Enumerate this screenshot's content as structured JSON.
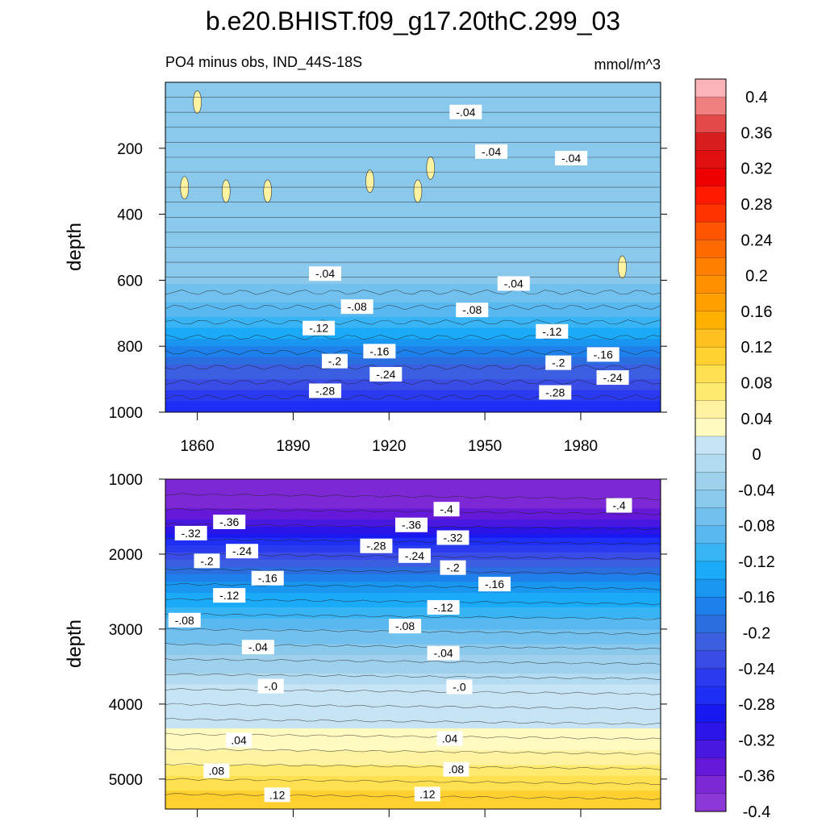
{
  "chart_data": {
    "title": "b.e20.BHIST.f09_g17.20thC.299_03",
    "subtitle_left": "PO4 minus obs, IND_44S-18S",
    "units": "mmol/m^3",
    "type": "heatmap",
    "time_range": [
      1850,
      2005
    ],
    "time_ticks": [
      "1860",
      "1890",
      "1920",
      "1950",
      "1980"
    ],
    "panels": [
      {
        "name": "upper",
        "ylabel": "depth",
        "ylim": [
          0,
          1000
        ],
        "y_ticks": [
          "200",
          "400",
          "600",
          "800",
          "1000"
        ],
        "depth_profile": [
          {
            "depth": 0,
            "value": -0.05
          },
          {
            "depth": 550,
            "value": -0.045
          },
          {
            "depth": 650,
            "value": -0.08
          },
          {
            "depth": 750,
            "value": -0.13
          },
          {
            "depth": 850,
            "value": -0.21
          },
          {
            "depth": 950,
            "value": -0.27
          },
          {
            "depth": 1000,
            "value": -0.3
          }
        ],
        "contour_labels": [
          {
            "text": "-.04",
            "t": 1944,
            "depth": 90
          },
          {
            "text": "-.04",
            "t": 1952,
            "depth": 210
          },
          {
            "text": "-.04",
            "t": 1977,
            "depth": 230
          },
          {
            "text": "-.04",
            "t": 1900,
            "depth": 580
          },
          {
            "text": "-.04",
            "t": 1959,
            "depth": 610
          },
          {
            "text": "-.08",
            "t": 1910,
            "depth": 680
          },
          {
            "text": "-.08",
            "t": 1946,
            "depth": 690
          },
          {
            "text": "-.12",
            "t": 1898,
            "depth": 745
          },
          {
            "text": "-.12",
            "t": 1971,
            "depth": 755
          },
          {
            "text": "-.16",
            "t": 1917,
            "depth": 815
          },
          {
            "text": "-.16",
            "t": 1987,
            "depth": 825
          },
          {
            "text": "-.2",
            "t": 1903,
            "depth": 845
          },
          {
            "text": "-.2",
            "t": 1973,
            "depth": 850
          },
          {
            "text": "-.24",
            "t": 1919,
            "depth": 885
          },
          {
            "text": "-.24",
            "t": 1990,
            "depth": 895
          },
          {
            "text": "-.28",
            "t": 1900,
            "depth": 935
          },
          {
            "text": "-.28",
            "t": 1972,
            "depth": 940
          }
        ],
        "positive_patches": [
          {
            "t": 1860,
            "depth": 60
          },
          {
            "t": 1856,
            "depth": 320
          },
          {
            "t": 1869,
            "depth": 330
          },
          {
            "t": 1882,
            "depth": 330
          },
          {
            "t": 1914,
            "depth": 300
          },
          {
            "t": 1929,
            "depth": 330
          },
          {
            "t": 1933,
            "depth": 260
          },
          {
            "t": 1993,
            "depth": 560
          }
        ]
      },
      {
        "name": "lower",
        "ylabel": "depth",
        "ylim": [
          1000,
          5400
        ],
        "y_ticks": [
          "1000",
          "2000",
          "3000",
          "4000",
          "5000"
        ],
        "depth_profile": [
          {
            "depth": 1000,
            "value": -0.4
          },
          {
            "depth": 1300,
            "value": -0.41
          },
          {
            "depth": 1700,
            "value": -0.33
          },
          {
            "depth": 2000,
            "value": -0.25
          },
          {
            "depth": 2400,
            "value": -0.17
          },
          {
            "depth": 2900,
            "value": -0.1
          },
          {
            "depth": 3300,
            "value": -0.05
          },
          {
            "depth": 3700,
            "value": -0.01
          },
          {
            "depth": 3800,
            "value": 0.005
          },
          {
            "depth": 4300,
            "value": 0.02
          },
          {
            "depth": 4700,
            "value": 0.05
          },
          {
            "depth": 5000,
            "value": 0.09
          },
          {
            "depth": 5400,
            "value": 0.13
          }
        ],
        "contour_labels": [
          {
            "text": "-.4",
            "t": 1938,
            "depth": 1400
          },
          {
            "text": "-.4",
            "t": 1992,
            "depth": 1350
          },
          {
            "text": "-.36",
            "t": 1870,
            "depth": 1570
          },
          {
            "text": "-.36",
            "t": 1927,
            "depth": 1610
          },
          {
            "text": "-.32",
            "t": 1858,
            "depth": 1720
          },
          {
            "text": "-.32",
            "t": 1940,
            "depth": 1780
          },
          {
            "text": "-.28",
            "t": 1916,
            "depth": 1890
          },
          {
            "text": "-.24",
            "t": 1874,
            "depth": 1960
          },
          {
            "text": "-.24",
            "t": 1928,
            "depth": 2020
          },
          {
            "text": "-.2",
            "t": 1863,
            "depth": 2090
          },
          {
            "text": "-.2",
            "t": 1940,
            "depth": 2180
          },
          {
            "text": "-.16",
            "t": 1882,
            "depth": 2320
          },
          {
            "text": "-.16",
            "t": 1953,
            "depth": 2400
          },
          {
            "text": "-.12",
            "t": 1870,
            "depth": 2550
          },
          {
            "text": "-.12",
            "t": 1937,
            "depth": 2710
          },
          {
            "text": "-.08",
            "t": 1856,
            "depth": 2880
          },
          {
            "text": "-.08",
            "t": 1925,
            "depth": 2960
          },
          {
            "text": "-.04",
            "t": 1879,
            "depth": 3240
          },
          {
            "text": "-.04",
            "t": 1937,
            "depth": 3320
          },
          {
            "text": "-.0",
            "t": 1883,
            "depth": 3760
          },
          {
            "text": "-.0",
            "t": 1942,
            "depth": 3770
          },
          {
            "text": ".04",
            "t": 1873,
            "depth": 4480
          },
          {
            "text": ".04",
            "t": 1939,
            "depth": 4460
          },
          {
            "text": ".08",
            "t": 1866,
            "depth": 4890
          },
          {
            "text": ".08",
            "t": 1941,
            "depth": 4870
          },
          {
            "text": ".12",
            "t": 1885,
            "depth": 5210
          },
          {
            "text": ".12",
            "t": 1932,
            "depth": 5200
          }
        ]
      }
    ],
    "colorbar": {
      "labels": [
        "0.4",
        "0.36",
        "0.32",
        "0.28",
        "0.24",
        "0.2",
        "0.16",
        "0.12",
        "0.08",
        "0.04",
        "0",
        "-0.04",
        "-0.08",
        "-0.12",
        "-0.16",
        "-0.2",
        "-0.24",
        "-0.28",
        "-0.32",
        "-0.36",
        "-0.4"
      ],
      "colors": [
        "#fbb4b9",
        "#f08080",
        "#e24a4a",
        "#d71d1d",
        "#e01010",
        "#ee0000",
        "#ff1a00",
        "#ff3300",
        "#ff5500",
        "#ff6a00",
        "#ff7f00",
        "#ff9000",
        "#ffa000",
        "#ffb000",
        "#ffc020",
        "#ffd030",
        "#ffe050",
        "#ffea70",
        "#fff2a0",
        "#fffac0",
        "#c6e4f4",
        "#b2daf0",
        "#9fd0ec",
        "#8ac8ec",
        "#72c0ee",
        "#5ab8f0",
        "#38b4f4",
        "#1aaaf8",
        "#1896f0",
        "#1e80ea",
        "#2a6ee0",
        "#3c5ee0",
        "#3a4ce6",
        "#2a3aee",
        "#1e2ef4",
        "#1818f0",
        "#2a14e8",
        "#4818e0",
        "#6418d8",
        "#7c28d4",
        "#8c38d8"
      ],
      "levels_note": ""
    }
  }
}
